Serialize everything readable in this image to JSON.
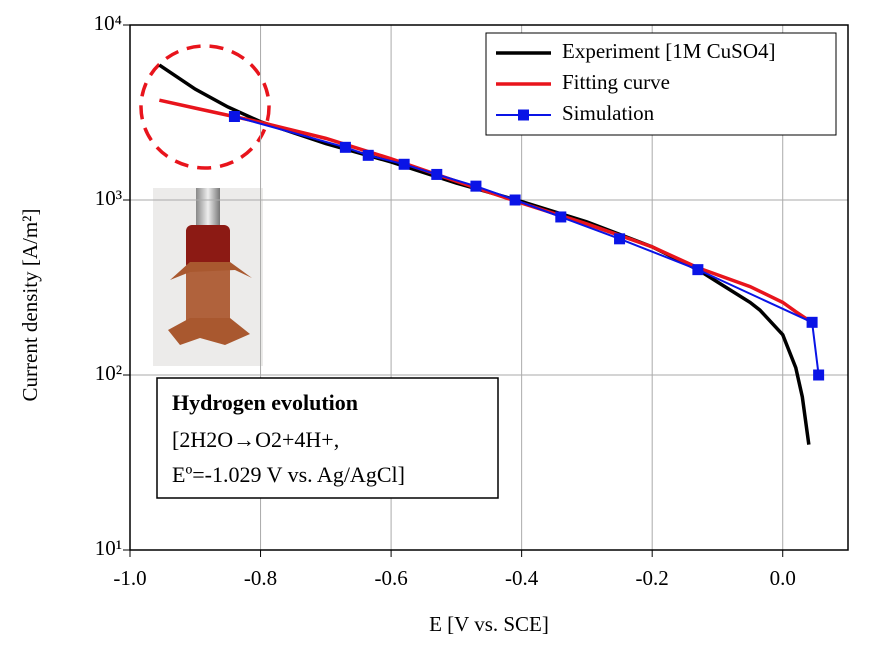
{
  "chart_data": {
    "type": "line",
    "xlabel": "E [V vs. SCE]",
    "ylabel": "Current density [A/m²]",
    "xlim": [
      -1.0,
      0.1
    ],
    "ylim": [
      10,
      10000
    ],
    "log_y": true,
    "grid": true,
    "legend_position": "upper right",
    "xticks": [
      {
        "value": -1.0,
        "label": "-1.0"
      },
      -0.8,
      -0.6,
      -0.4,
      -0.2,
      {
        "value": 0,
        "label": "0.0"
      }
    ],
    "yticks": [
      {
        "value": 10,
        "label": "10¹"
      },
      {
        "value": 100,
        "label": "10²"
      },
      {
        "value": 1000,
        "label": "10³"
      },
      {
        "value": 10000,
        "label": "10⁴"
      }
    ],
    "series": [
      {
        "name": "Experiment [1M CuSO4]",
        "color": "#000000",
        "marker": false,
        "x": [
          -0.955,
          -0.9,
          -0.85,
          -0.8,
          -0.7,
          -0.6,
          -0.5,
          -0.4,
          -0.3,
          -0.2,
          -0.13,
          -0.1,
          -0.05,
          -0.035,
          0.0,
          0.02,
          0.03,
          0.04
        ],
        "values": [
          5900,
          4300,
          3400,
          2800,
          2100,
          1650,
          1250,
          980,
          750,
          540,
          400,
          340,
          260,
          235,
          170,
          110,
          75,
          40
        ]
      },
      {
        "name": "Fitting curve",
        "color": "#e8141c",
        "marker": false,
        "x": [
          -0.955,
          -0.9,
          -0.85,
          -0.8,
          -0.7,
          -0.6,
          -0.5,
          -0.4,
          -0.3,
          -0.2,
          -0.13,
          -0.05,
          0.0,
          0.02,
          0.04
        ],
        "values": [
          3720,
          3350,
          3050,
          2780,
          2250,
          1720,
          1280,
          960,
          730,
          540,
          410,
          320,
          260,
          230,
          205
        ]
      },
      {
        "name": "Simulation",
        "color": "#0a14e6",
        "marker": true,
        "x": [
          -0.84,
          -0.67,
          -0.635,
          -0.58,
          -0.53,
          -0.47,
          -0.41,
          -0.34,
          -0.25,
          -0.13,
          0.045,
          0.055
        ],
        "values": [
          3000,
          2000,
          1800,
          1600,
          1400,
          1200,
          1000,
          800,
          600,
          400,
          200,
          100
        ]
      }
    ],
    "annotation": {
      "title": "Hydrogen evolution",
      "lines": [
        "[2H2O→O2+4H+,",
        "Eº=-1.029 V vs. Ag/AgCl]"
      ]
    }
  }
}
